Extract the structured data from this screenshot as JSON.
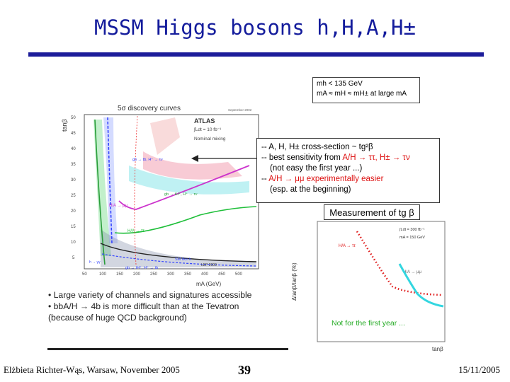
{
  "header": {
    "title": "MSSM Higgs bosons h,H,A,H±"
  },
  "mass_box": {
    "line1": "mh < 135 GeV",
    "line2": "mA ≈ mH ≈ mH± at large mA"
  },
  "xs_box": {
    "line1": "-- A, H, H± cross-section ~ tg²β",
    "line2_a": "-- best sensitivity from",
    "line2_b": "A/H → ττ, H± → τν",
    "line3": "(not easy the first year ...)",
    "line4_a": "--",
    "line4_b": "A/H → μμ experimentally easier",
    "line5": "(esp. at the beginning)"
  },
  "measurement_box": {
    "label": "Measurement of tg β"
  },
  "left_plot": {
    "title": "5σ discovery curves",
    "legend_name": "ATLAS",
    "legend_lumi": "∫Ldt = 10 fb⁻¹",
    "legend_mixing": "Nominal mixing",
    "date": "September 2002",
    "ylabel": "tanβ",
    "xlabel": "mA (GeV)",
    "y_ticks": [
      "50",
      "45",
      "40",
      "35",
      "30",
      "25",
      "20",
      "15",
      "10",
      "5"
    ],
    "x_ticks": [
      "50",
      "100",
      "150",
      "200",
      "250",
      "300",
      "350",
      "400",
      "450",
      "500"
    ],
    "labels": {
      "tautau_h": "gb → tb, H⁺ → τν",
      "mumu": "H/A → μμ",
      "tautau": "H/A → ττ",
      "h_lep": "gb → tH⁺, H⁺ → τν",
      "sm_like": "SM like h",
      "lep": "LEP 2000",
      "tt": "gb → tH⁺, H⁺ → tb",
      "low": "h → γγ"
    }
  },
  "right_plot": {
    "ylabel": "Δtanβ/tanβ (%)",
    "xlabel": "tanβ",
    "legend_lumi": "∫Ldt = 300 fb⁻¹",
    "legend_mass": "mA = 150 GeV",
    "label_tautau": "H/A → ττ",
    "label_mumu": "H/A → μμ",
    "note": "Not for the first year ..."
  },
  "bullets": {
    "b1": "• Large variety of channels and signatures accessible",
    "b2": "• bbA/H → 4b is more difficult than at the Tevatron",
    "b3": "(because of huge QCD background)"
  },
  "footer": {
    "author": "Elżbieta Richter-Wąs, Warsaw, November 2005",
    "page": "39",
    "date": "15/11/2005"
  },
  "colors": {
    "title": "#141c9c",
    "accent_red": "#d11111",
    "curve_cyan": "#33d6e0"
  }
}
